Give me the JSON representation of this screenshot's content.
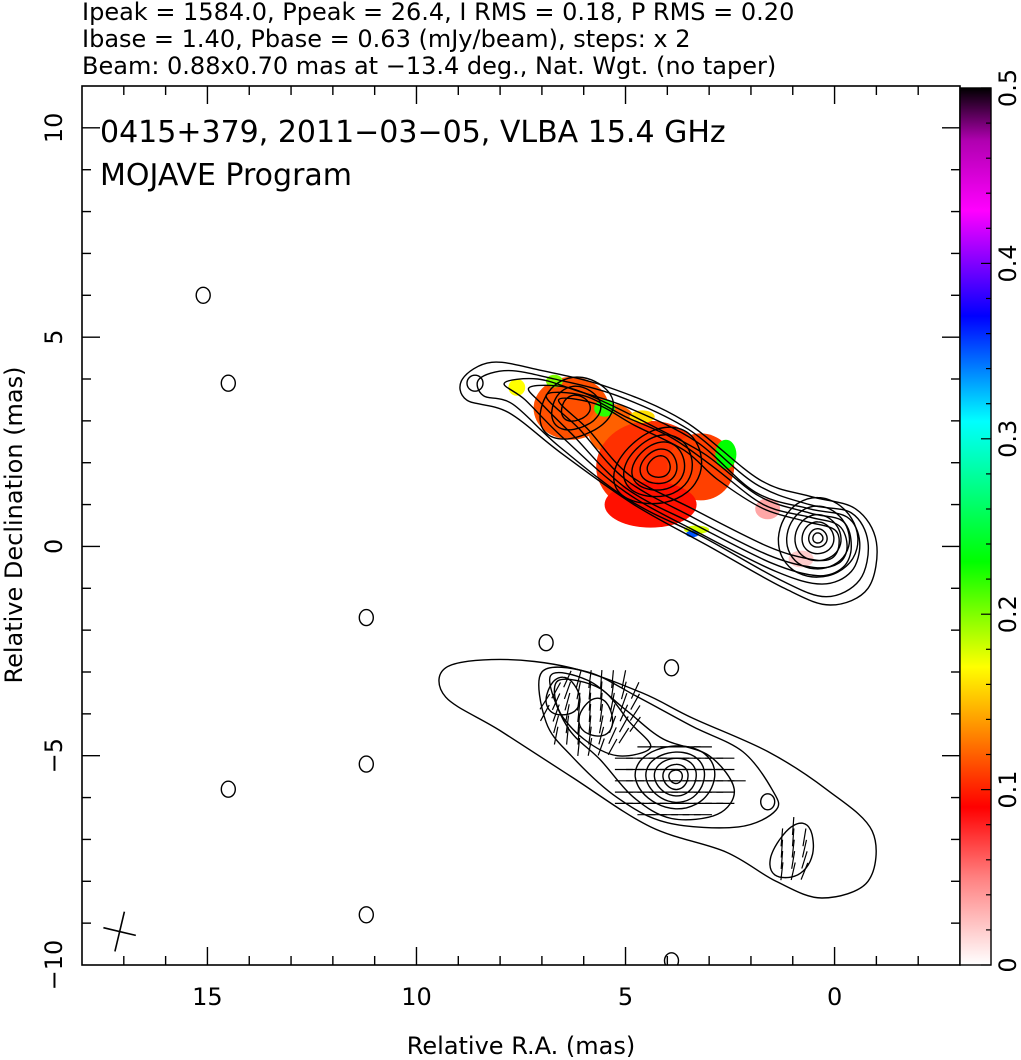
{
  "header": {
    "line1": "Ipeak = 1584.0, Ppeak = 26.4, I RMS = 0.18, P RMS = 0.20",
    "line2": "Ibase = 1.40, Pbase = 0.63 (mJy/beam), steps: x 2",
    "line3": "Beam: 0.88x0.70 mas at −13.4 deg., Nat. Wgt. (no taper)"
  },
  "chart_data": {
    "type": "contour",
    "title_lines": [
      "0415+379, 2011−03−05, VLBA 15.4 GHz",
      "MOJAVE Program"
    ],
    "xlabel": "Relative R.A. (mas)",
    "ylabel": "Relative Declination (mas)",
    "xlim": [
      18.0,
      -3.0
    ],
    "ylim": [
      -10.0,
      11.0
    ],
    "x_ticks": [
      15,
      10,
      5,
      0
    ],
    "y_ticks": [
      10,
      5,
      0,
      -5,
      -10
    ],
    "x_tick_labels": [
      "15",
      "10",
      "5",
      "0"
    ],
    "y_tick_labels": [
      "10",
      "5",
      "0",
      "−5",
      "−10"
    ],
    "colorbar": {
      "range": [
        0,
        0.5
      ],
      "ticks": [
        0,
        0.1,
        0.2,
        0.3,
        0.4,
        0.5
      ],
      "tick_labels": [
        "0",
        "0.1",
        "0.2",
        "0.3",
        "0.4",
        "0.5"
      ],
      "stops": [
        {
          "v": 0.0,
          "color": "#ffffff"
        },
        {
          "v": 0.05,
          "color": "#ff8080"
        },
        {
          "v": 0.09,
          "color": "#ff0000"
        },
        {
          "v": 0.13,
          "color": "#ff8000"
        },
        {
          "v": 0.17,
          "color": "#ffff00"
        },
        {
          "v": 0.23,
          "color": "#00ff00"
        },
        {
          "v": 0.31,
          "color": "#00ffff"
        },
        {
          "v": 0.37,
          "color": "#0000ff"
        },
        {
          "v": 0.43,
          "color": "#ff00ff"
        },
        {
          "v": 0.47,
          "color": "#b000b0"
        },
        {
          "v": 0.5,
          "color": "#000000"
        }
      ]
    },
    "upper_map": {
      "core": [
        0.4,
        0.2
      ],
      "knot": [
        4.2,
        1.9
      ],
      "upstream_knot": [
        6.2,
        3.3
      ],
      "contours": 10
    },
    "lower_map": {
      "core": [
        3.8,
        -5.5
      ],
      "knots": [
        [
          5.7,
          -4.1
        ],
        [
          6.5,
          -3.6
        ],
        [
          1.0,
          -7.3
        ]
      ],
      "contours": 6
    },
    "isolated_features": [
      [
        15.1,
        6.0
      ],
      [
        14.5,
        3.9
      ],
      [
        11.2,
        -1.7
      ],
      [
        11.2,
        -5.2
      ],
      [
        11.2,
        -8.8
      ],
      [
        14.5,
        -5.8
      ],
      [
        3.9,
        -2.9
      ],
      [
        6.9,
        -2.3
      ],
      [
        3.9,
        -9.9
      ],
      [
        1.6,
        -6.1
      ]
    ],
    "beam": {
      "major_mas": 0.88,
      "minor_mas": 0.7,
      "pa_deg": -13.4,
      "center": [
        17.1,
        -9.2
      ]
    }
  }
}
